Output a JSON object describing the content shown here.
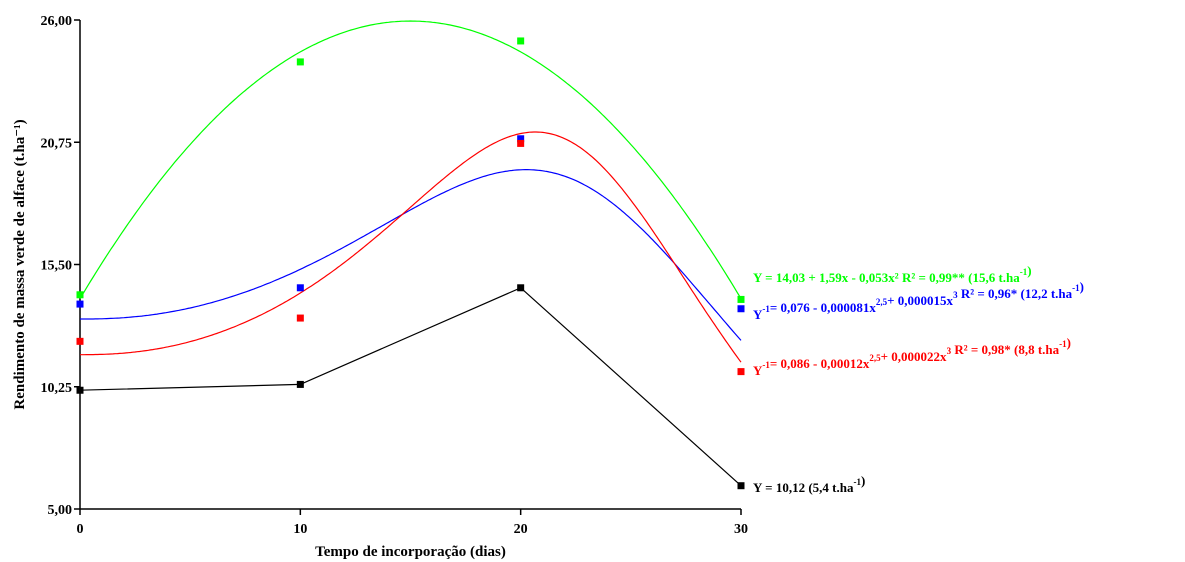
{
  "chart_data": {
    "type": "scatter",
    "xlabel": "Tempo de incorporação (dias)",
    "ylabel": "Rendimento de massa verde de alface (t.ha⁻¹)",
    "xlim": [
      0,
      30
    ],
    "ylim": [
      5.0,
      26.0
    ],
    "x_ticks": [
      "0",
      "10",
      "20",
      "30"
    ],
    "y_ticks": [
      "5,00",
      "10,25",
      "15,50",
      "20,75",
      "26,00"
    ],
    "x": [
      0,
      10,
      20,
      30
    ],
    "series": [
      {
        "color": "#00ff00",
        "marker": "square",
        "values": [
          14.2,
          24.2,
          25.1,
          14.0
        ],
        "fit": "quadratic",
        "fit_coefficients": [
          14.03,
          1.59,
          -0.053
        ],
        "equation": {
          "lead": "Y = 14,03 + 1,59x - 0,053x² R² = 0,99** (15,6 t.ha",
          "tail": ")"
        }
      },
      {
        "color": "#0000ff",
        "marker": "square",
        "values": [
          13.8,
          14.5,
          20.9,
          13.6
        ],
        "fit": "reciprocal",
        "fit_coefficients": [
          0.076,
          -8.1e-05,
          1.5e-05
        ],
        "equation": {
          "lead": "Y",
          "a": "= 0,076 - 0,000081x",
          "b": "+ 0,000015x",
          "c": " R² = 0,96* (12,2 t.ha",
          "tail": ")"
        }
      },
      {
        "color": "#ff0000",
        "marker": "square",
        "values": [
          12.2,
          13.2,
          20.7,
          10.9
        ],
        "fit": "reciprocal",
        "fit_coefficients": [
          0.086,
          -0.00012,
          2.2e-05
        ],
        "equation": {
          "lead": "Y",
          "a": "= 0,086 - 0,00012x",
          "b": "+ 0,000022x",
          "c": " R² = 0,98* (8,8 t.ha",
          "tail": ")"
        }
      },
      {
        "color": "#000000",
        "marker": "square",
        "values": [
          10.1,
          10.35,
          14.5,
          6.0
        ],
        "fit": "none",
        "equation": {
          "lead": "Y = 10,12 (5,4 t.ha",
          "tail": ")"
        }
      }
    ],
    "superscripts": {
      "minus_one": "-1",
      "exp_25": "2,5",
      "exp_3": "3"
    },
    "grid": false,
    "legend": "right"
  }
}
